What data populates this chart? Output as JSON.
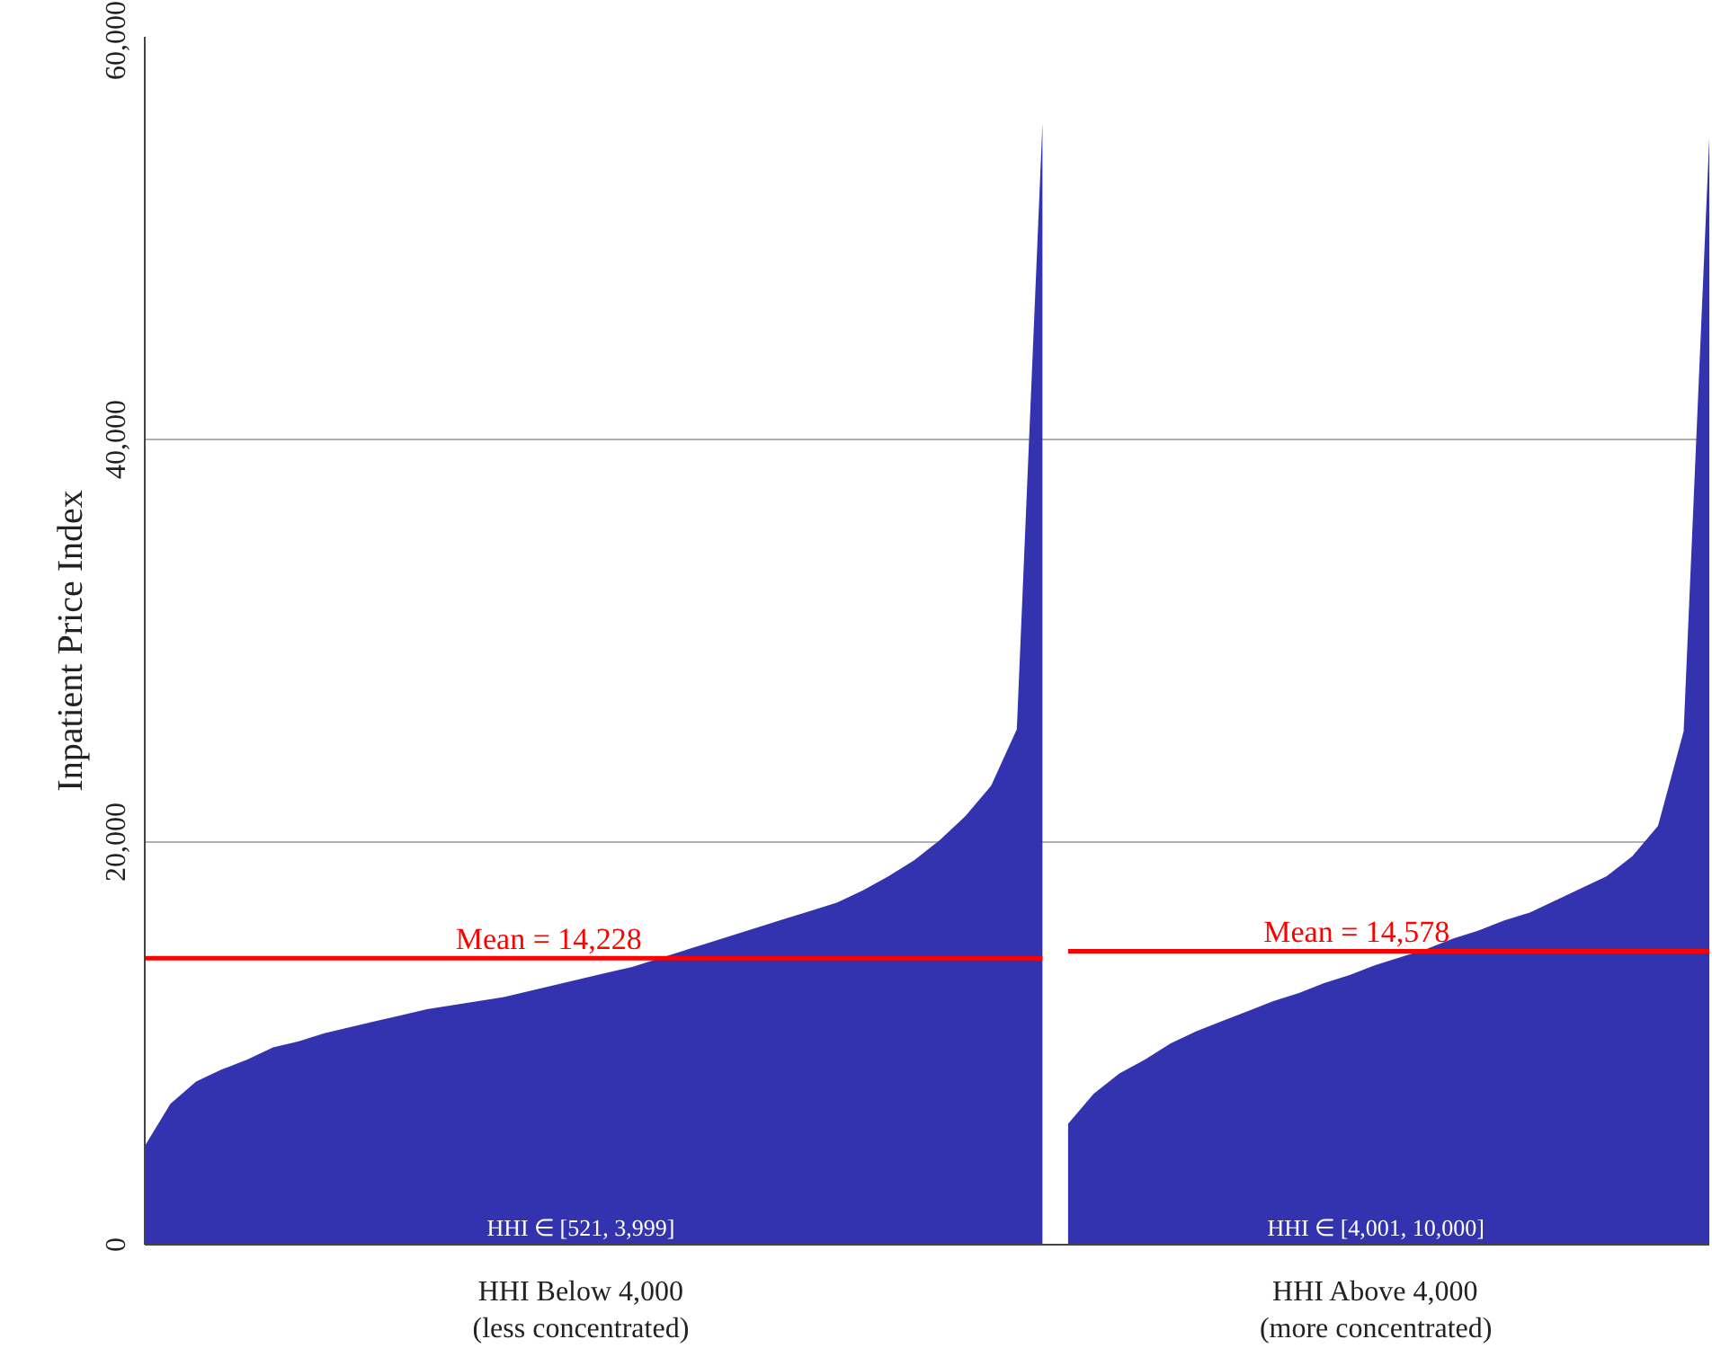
{
  "chart_data": {
    "type": "area",
    "ylabel": "Inpatient Price Index",
    "categories": [
      null,
      null,
      null,
      null,
      null,
      null,
      null,
      null,
      null,
      null,
      null,
      null,
      null,
      null,
      null,
      null,
      null,
      "HHI Below 4,000\n(less concentrated)",
      null,
      null,
      null,
      null,
      null,
      null,
      null,
      null,
      null,
      null,
      null,
      null,
      null,
      null,
      null,
      null,
      null,
      null,
      null,
      null,
      null,
      null,
      null,
      null,
      null,
      null,
      null,
      null,
      null,
      null,
      "HHI Above 4,000\n(more concentrated)",
      null,
      null,
      null,
      null,
      null,
      null,
      null,
      null,
      null,
      null,
      null,
      null,
      null
    ],
    "ylim": [
      0,
      60000
    ],
    "yticks": [
      {
        "value": 0,
        "label": "0"
      },
      {
        "value": 20000,
        "label": "20,000"
      },
      {
        "value": 40000,
        "label": "40,000"
      },
      {
        "value": 60000,
        "label": "60,000"
      }
    ],
    "grid": "y",
    "series": [
      {
        "color": "#3333b0",
        "values": [
          4900,
          7000,
          8100,
          8700,
          9200,
          9800,
          10100,
          10500,
          10800,
          11100,
          11400,
          11700,
          11900,
          12100,
          12300,
          12600,
          12900,
          13200,
          13500,
          13800,
          14200,
          14600,
          15000,
          15400,
          15800,
          16200,
          16600,
          17000,
          17600,
          18300,
          19100,
          20100,
          21300,
          22800,
          25600,
          55700,
          null,
          null,
          null,
          null,
          null,
          null,
          null,
          null,
          null,
          null,
          null,
          null,
          null,
          null,
          null,
          null,
          null,
          null,
          null,
          null,
          null,
          null,
          null,
          null,
          null,
          null
        ]
      },
      {
        "color": "#3333b0",
        "values": [
          null,
          null,
          null,
          null,
          null,
          null,
          null,
          null,
          null,
          null,
          null,
          null,
          null,
          null,
          null,
          null,
          null,
          null,
          null,
          null,
          null,
          null,
          null,
          null,
          null,
          null,
          null,
          null,
          null,
          null,
          null,
          null,
          null,
          null,
          null,
          null,
          6000,
          7500,
          8500,
          9200,
          10000,
          10600,
          11100,
          11600,
          12100,
          12500,
          13000,
          13400,
          13900,
          14300,
          14700,
          15200,
          15600,
          16100,
          16500,
          17100,
          17700,
          18300,
          19300,
          20800,
          25500,
          55000
        ]
      },
      {
        "type": "line",
        "name": "Mean = 14,228",
        "color": "#ff0000",
        "values": [
          14228,
          14228,
          14228,
          14228,
          14228,
          14228,
          14228,
          14228,
          14228,
          14228,
          14228,
          14228,
          14228,
          14228,
          14228,
          14228,
          14228,
          14228,
          14228,
          14228,
          14228,
          14228,
          14228,
          14228,
          14228,
          14228,
          14228,
          14228,
          14228,
          14228,
          14228,
          14228,
          14228,
          14228,
          14228,
          14228,
          null,
          null,
          null,
          null,
          null,
          null,
          null,
          null,
          null,
          null,
          null,
          null,
          null,
          null,
          null,
          null,
          null,
          null,
          null,
          null,
          null,
          null,
          null,
          null,
          null,
          null
        ]
      },
      {
        "type": "line",
        "name": "Mean = 14,578",
        "color": "#ff0000",
        "values": [
          null,
          null,
          null,
          null,
          null,
          null,
          null,
          null,
          null,
          null,
          null,
          null,
          null,
          null,
          null,
          null,
          null,
          null,
          null,
          null,
          null,
          null,
          null,
          null,
          null,
          null,
          null,
          null,
          null,
          null,
          null,
          null,
          null,
          null,
          null,
          null,
          14578,
          14578,
          14578,
          14578,
          14578,
          14578,
          14578,
          14578,
          14578,
          14578,
          14578,
          14578,
          14578,
          14578,
          14578,
          14578,
          14578,
          14578,
          14578,
          14578,
          14578,
          14578,
          14578,
          14578,
          14578,
          14578
        ]
      }
    ],
    "annotations": [
      {
        "text": "HHI ∈ [521, 3,999]",
        "x": "HHI Below 4,000\n(less concentrated)",
        "y": 0
      },
      {
        "text": "HHI ∈ [4,001, 10,000]",
        "x": "HHI Above 4,000\n(more concentrated)",
        "y": 0
      }
    ]
  }
}
